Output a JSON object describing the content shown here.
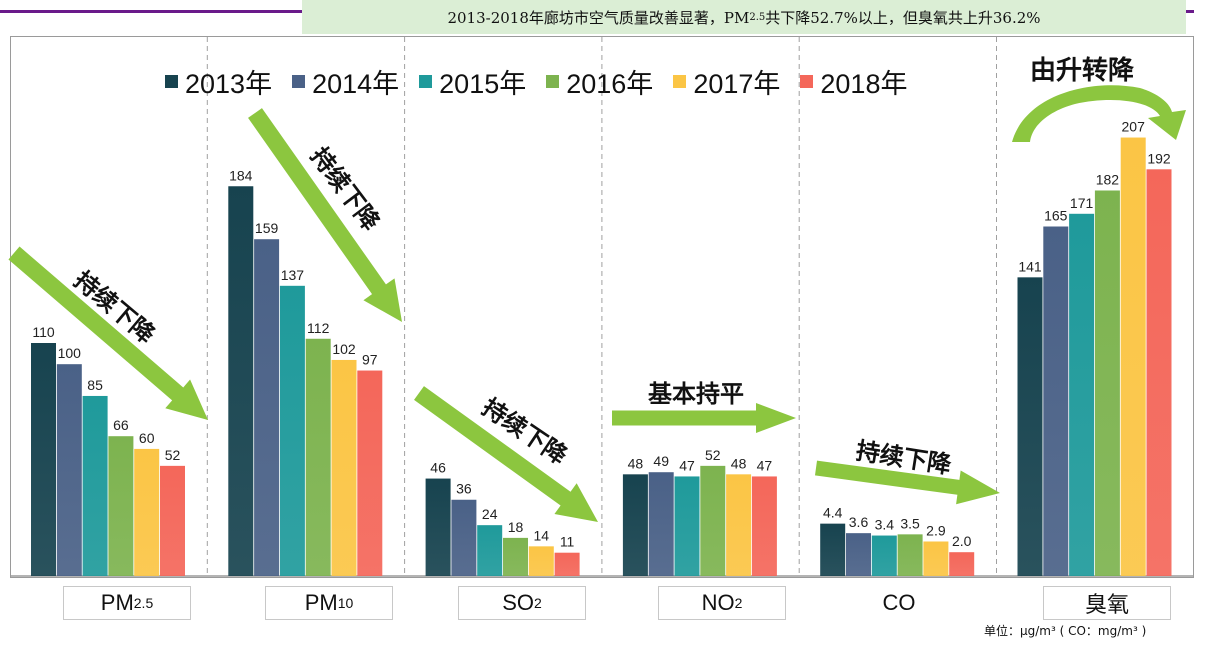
{
  "banner": {
    "text_before": "2013-2018年廊坊市空气质量改善显著，PM",
    "text_sub": "2.5",
    "text_after": "共下降52.7%以上，但臭氧共上升36.2%"
  },
  "colors": {
    "series": [
      "#17434f",
      "#4a6187",
      "#1f9a9b",
      "#7db34f",
      "#fbc545",
      "#f4675a"
    ],
    "arrow": "#8cc63f",
    "banner_bg": "#dbeed5",
    "top_line": "#6a1a8a"
  },
  "unit_note": "单位：μg/m³ ( CO：mg/m³ )",
  "annotations": {
    "pm25": "持续下降",
    "pm10": "持续下降",
    "so2": "持续下降",
    "no2": "基本持平",
    "co": "持续下降",
    "o3": "由升转降"
  },
  "chart_data": {
    "type": "bar",
    "categories": [
      "PM2.5",
      "PM10",
      "SO2",
      "NO2",
      "CO",
      "臭氧"
    ],
    "category_display": [
      {
        "main": "PM",
        "sub": "2.5"
      },
      {
        "main": "PM",
        "sub": "10"
      },
      {
        "main": "SO",
        "sub": "2"
      },
      {
        "main": "NO",
        "sub": "2"
      },
      {
        "main": "CO",
        "sub": ""
      },
      {
        "main": "臭氧",
        "sub": ""
      }
    ],
    "series": [
      {
        "name": "2013年",
        "values": [
          110,
          184,
          46,
          48,
          4.4,
          141
        ],
        "labels": [
          "110",
          "184",
          "46",
          "48",
          "4.4",
          "141"
        ]
      },
      {
        "name": "2014年",
        "values": [
          100,
          159,
          36,
          49,
          3.6,
          165
        ],
        "labels": [
          "100",
          "159",
          "36",
          "49",
          "3.6",
          "165"
        ]
      },
      {
        "name": "2015年",
        "values": [
          85,
          137,
          24,
          47,
          3.4,
          171
        ],
        "labels": [
          "85",
          "137",
          "24",
          "47",
          "3.4",
          "171"
        ]
      },
      {
        "name": "2016年",
        "values": [
          66,
          112,
          18,
          52,
          3.5,
          182
        ],
        "labels": [
          "66",
          "112",
          "18",
          "52",
          "3.5",
          "182"
        ]
      },
      {
        "name": "2017年",
        "values": [
          60,
          102,
          14,
          48,
          2.9,
          207
        ],
        "labels": [
          "60",
          "102",
          "14",
          "48",
          "2.9",
          "207"
        ]
      },
      {
        "name": "2018年",
        "values": [
          52,
          97,
          11,
          47,
          2.0,
          192
        ],
        "labels": [
          "52",
          "97",
          "11",
          "47",
          "2.0",
          "192"
        ]
      }
    ],
    "legend_position": "top",
    "grid": false
  }
}
